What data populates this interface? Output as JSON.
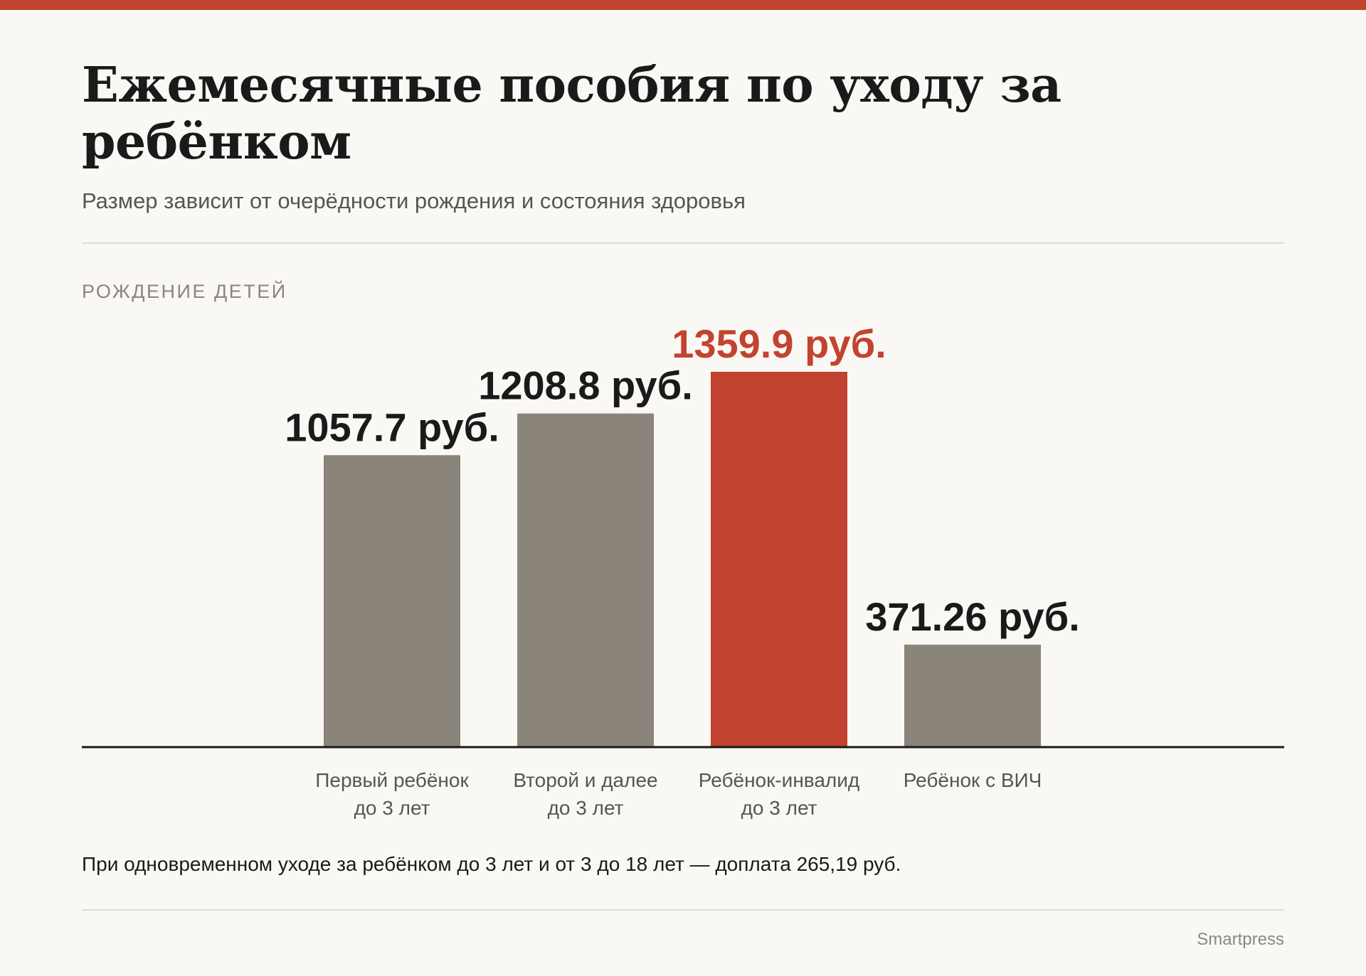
{
  "colors": {
    "accent": "#c2432f",
    "bar": "#8b847a",
    "baseline": "#1a1a1a"
  },
  "header": {
    "title": "Ежемесячные пособия по уходу за ребёнком",
    "subtitle": "Размер зависит от очерёдности рождения и состояния здоровья",
    "section_label": "РОЖДЕНИЕ ДЕТЕЙ"
  },
  "chart_data": {
    "type": "bar",
    "title": "Ежемесячные пособия по уходу за ребёнком",
    "subtitle": "Размер зависит от очерёдности рождения и состояния здоровья",
    "xlabel": "",
    "ylabel": "",
    "grid": false,
    "ylim": [
      0,
      1500
    ],
    "categories": [
      [
        "Первый ребёнок",
        "до 3 лет"
      ],
      [
        "Второй и далее",
        "до 3 лет"
      ],
      [
        "Ребёнок-инвалид",
        "до 3 лет"
      ],
      [
        "Ребёнок с ВИЧ"
      ]
    ],
    "values": [
      1057.7,
      1208.8,
      1359.9,
      371.26
    ],
    "value_labels": [
      "1057.7 руб.",
      "1208.8 руб.",
      "1359.9 руб.",
      "371.26 руб."
    ],
    "highlight_index": 2
  },
  "footer": {
    "note": "При одновременном уходе за ребёнком до 3 лет и от 3 до 18 лет — доплата 265,19 руб.",
    "source": "Smartpress"
  }
}
